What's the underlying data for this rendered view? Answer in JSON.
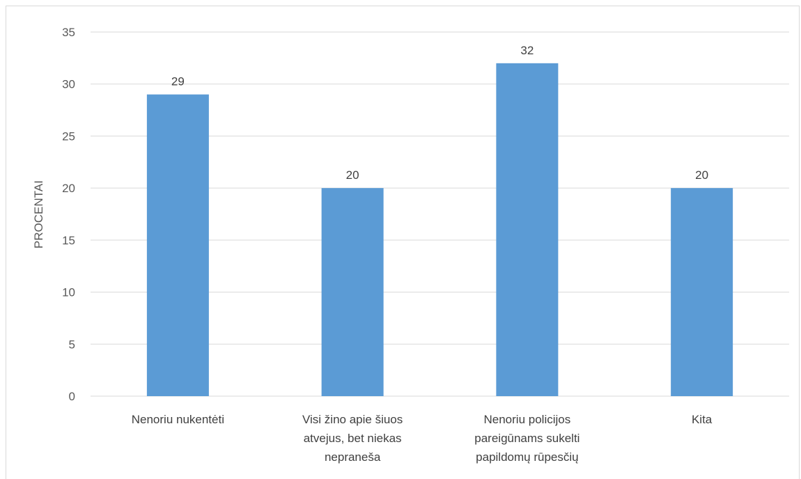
{
  "chart_data": {
    "type": "bar",
    "categories": [
      [
        "Nenoriu nukentėti"
      ],
      [
        "Visi žino apie šiuos",
        "atvejus, bet niekas",
        "nepraneša"
      ],
      [
        "Nenoriu policijos",
        "pareigūnams sukelti",
        "papildomų rūpesčių"
      ],
      [
        "Kita"
      ]
    ],
    "values": [
      29,
      20,
      32,
      20
    ],
    "data_labels": [
      "29",
      "20",
      "32",
      "20"
    ],
    "ylabel": "PROCENTAI",
    "xlabel": "",
    "ylim": [
      0,
      35
    ],
    "yticks": [
      0,
      5,
      10,
      15,
      20,
      25,
      30,
      35
    ],
    "grid": true,
    "bar_color": "#5b9bd5"
  }
}
